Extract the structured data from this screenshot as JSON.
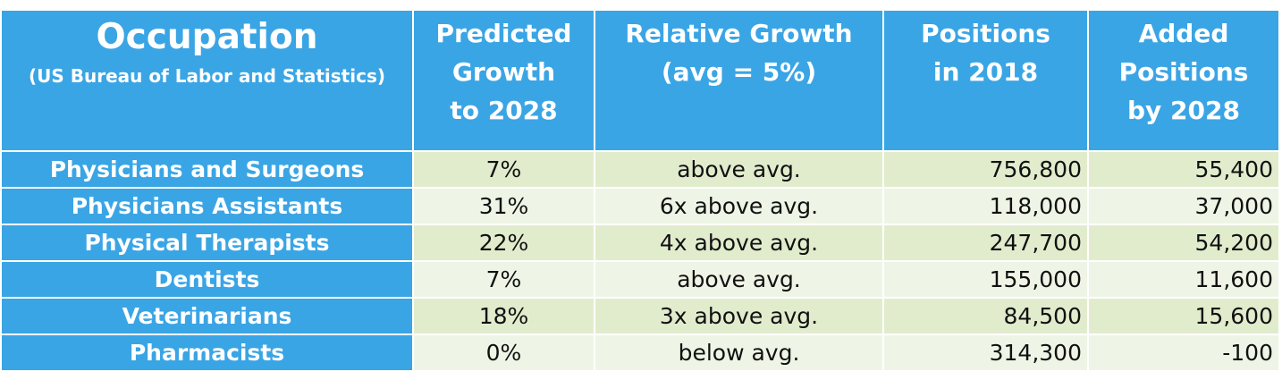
{
  "header": {
    "occupation_title": "Occupation",
    "occupation_subtitle": "(US Bureau of Labor and Statistics)",
    "growth": [
      "Predicted",
      "Growth",
      "to 2028"
    ],
    "relative": [
      "Relative Growth",
      "(avg = 5%)"
    ],
    "positions": [
      "Positions",
      "in 2018"
    ],
    "added": [
      "Added",
      "Positions",
      "by 2028"
    ]
  },
  "rows": [
    {
      "occupation": "Physicians and Surgeons",
      "growth": "7%",
      "relative": "above avg.",
      "positions_2018": "756,800",
      "added_2028": "55,400"
    },
    {
      "occupation": "Physicians Assistants",
      "growth": "31%",
      "relative": "6x  above avg.",
      "positions_2018": "118,000",
      "added_2028": "37,000"
    },
    {
      "occupation": "Physical Therapists",
      "growth": "22%",
      "relative": "4x  above avg.",
      "positions_2018": "247,700",
      "added_2028": "54,200"
    },
    {
      "occupation": "Dentists",
      "growth": "7%",
      "relative": "above avg.",
      "positions_2018": "155,000",
      "added_2028": "11,600"
    },
    {
      "occupation": "Veterinarians",
      "growth": "18%",
      "relative": "3x above avg.",
      "positions_2018": "84,500",
      "added_2028": "15,600"
    },
    {
      "occupation": "Pharmacists",
      "growth": "0%",
      "relative": "below avg.",
      "positions_2018": "314,300",
      "added_2028": "-100"
    }
  ],
  "colors": {
    "header_blue": "#3aa5e5",
    "row_dark": "#e1eccd",
    "row_light": "#eff5e6"
  }
}
